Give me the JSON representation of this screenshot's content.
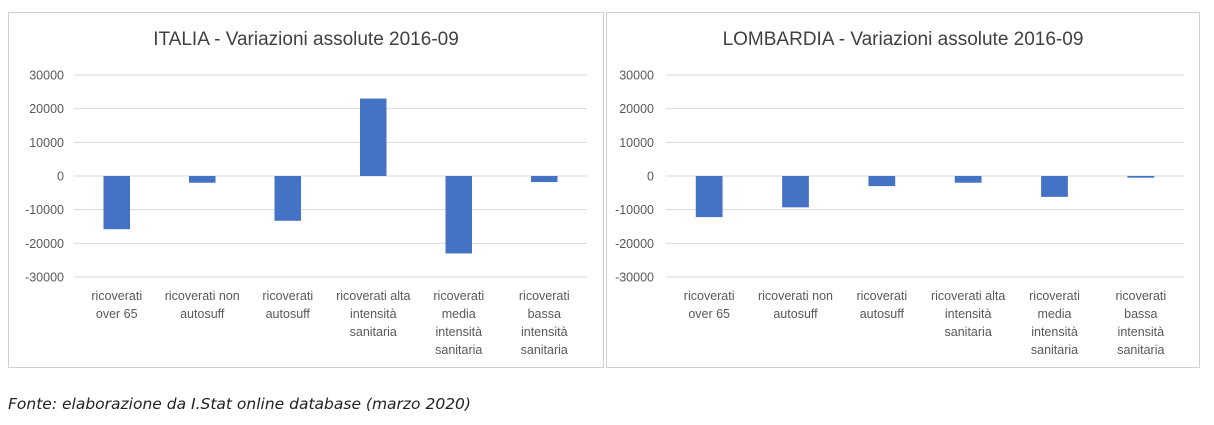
{
  "chart_data": [
    {
      "type": "bar",
      "title": "ITALIA - Variazioni assolute 2016-09",
      "categories": [
        [
          "ricoverati",
          "over 65"
        ],
        [
          "ricoverati non",
          "autosuff"
        ],
        [
          "ricoverati",
          "autosuff"
        ],
        [
          "ricoverati alta",
          "intensità",
          "sanitaria"
        ],
        [
          "ricoverati",
          "media",
          "intensità",
          "sanitaria"
        ],
        [
          "ricoverati",
          "bassa",
          "intensità",
          "sanitaria"
        ]
      ],
      "values": [
        -15800,
        -2000,
        -13300,
        23000,
        -23000,
        -1800
      ],
      "ylim": [
        -30000,
        30000
      ],
      "yticks": [
        30000,
        20000,
        10000,
        0,
        -10000,
        -20000,
        -30000
      ],
      "ytick_labels": [
        "30000",
        "20000",
        "10000",
        "0",
        "-10000",
        "-20000",
        "-30000"
      ],
      "grid": true,
      "bar_color": "#4472c4"
    },
    {
      "type": "bar",
      "title": "LOMBARDIA - Variazioni assolute 2016-09",
      "categories": [
        [
          "ricoverati",
          "over 65"
        ],
        [
          "ricoverati non",
          "autosuff"
        ],
        [
          "ricoverati",
          "autosuff"
        ],
        [
          "ricoverati alta",
          "intensità",
          "sanitaria"
        ],
        [
          "ricoverati",
          "media",
          "intensità",
          "sanitaria"
        ],
        [
          "ricoverati",
          "bassa",
          "intensità",
          "sanitaria"
        ]
      ],
      "values": [
        -12200,
        -9300,
        -3000,
        -2000,
        -6200,
        -500
      ],
      "ylim": [
        -30000,
        30000
      ],
      "yticks": [
        30000,
        20000,
        10000,
        0,
        -10000,
        -20000,
        -30000
      ],
      "ytick_labels": [
        "30000",
        "20000",
        "10000",
        "0",
        "-10000",
        "-20000",
        "-30000"
      ],
      "grid": true,
      "bar_color": "#4472c4"
    }
  ],
  "source_note": "Fonte: elaborazione da I.Stat online database (marzo 2020)",
  "colors": {
    "bar": "#4472c4",
    "gridline": "#d9d9d9",
    "axis_text": "#595959",
    "title_text": "#404040",
    "panel_border": "#d0d0d0"
  }
}
